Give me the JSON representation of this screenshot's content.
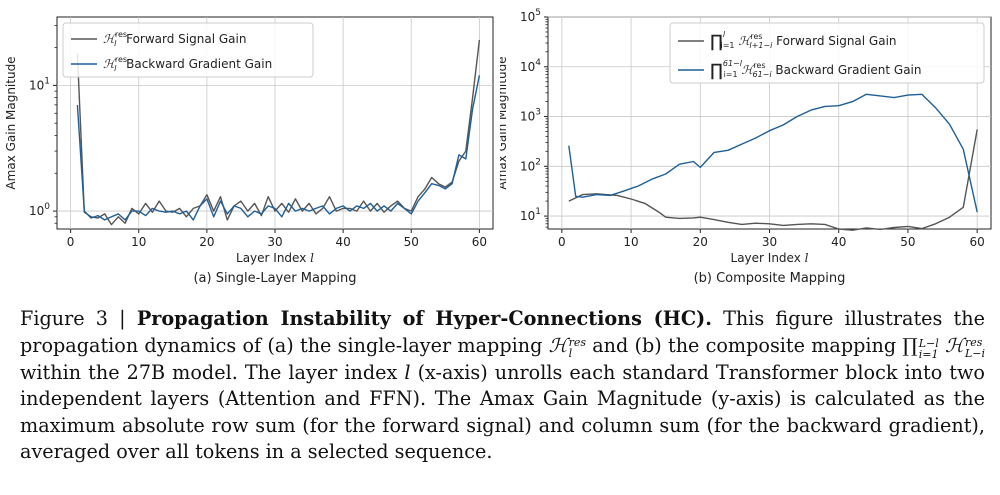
{
  "figure_caption": {
    "prefix": "Figure 3 | ",
    "title": "Propagation Instability of Hyper-Connections (HC).",
    "t1": " This figure illustrates the propagation dynamics of (a) the single-layer mapping ",
    "t2": " and (b) the composite mapping ",
    "t3": " within the 27B model. The layer index ",
    "t4": " (x-axis) unrolls each standard Transformer block into two independent layers (Attention and FFN). The Amax Gain Magnitude (y-axis) is calculated as the maximum absolute row sum (for the forward signal) and column sum (for the backward gradient), averaged over all tokens in a selected sequence.",
    "sym_H": "ℋ",
    "sym_res": "res",
    "sym_l": "l",
    "sym_prod": "∏",
    "sym_prod_upper": "L−l",
    "sym_prod_lower": "i=1",
    "sym_Lmi": "L−i"
  },
  "chart_data": [
    {
      "type": "line",
      "subtitle": "(a) Single-Layer Mapping",
      "xlabel": "Layer Index",
      "xlabel_symbol": "l",
      "ylabel": "Amax Gain Magnitude",
      "yscale": "log",
      "xlim": [
        -2,
        62
      ],
      "ylim": [
        0.72,
        35
      ],
      "xticks": [
        0,
        10,
        20,
        30,
        40,
        50,
        60
      ],
      "yticks": [
        {
          "value": 1,
          "base": "10",
          "exp": "0"
        },
        {
          "value": 10,
          "base": "10",
          "exp": "1"
        }
      ],
      "legend_position": "top-left",
      "series": [
        {
          "name": "Forward Signal Gain",
          "legend_symbol": "ℋ",
          "legend_sup": "res",
          "legend_sub": "l",
          "color": "#555555",
          "x": [
            1,
            2,
            3,
            4,
            5,
            6,
            7,
            8,
            9,
            10,
            11,
            12,
            13,
            14,
            15,
            16,
            17,
            18,
            19,
            20,
            21,
            22,
            23,
            24,
            25,
            26,
            27,
            28,
            29,
            30,
            31,
            32,
            33,
            34,
            35,
            36,
            37,
            38,
            39,
            40,
            41,
            42,
            43,
            44,
            45,
            46,
            47,
            48,
            49,
            50,
            51,
            52,
            53,
            54,
            55,
            56,
            57,
            58,
            59,
            60
          ],
          "values": [
            18,
            0.98,
            0.9,
            0.88,
            0.95,
            0.78,
            0.9,
            0.8,
            1.05,
            0.95,
            1.15,
            0.98,
            1.2,
            1.0,
            0.98,
            1.05,
            0.9,
            1.05,
            1.1,
            1.35,
            1.0,
            1.3,
            0.85,
            1.1,
            1.2,
            1.0,
            1.15,
            0.92,
            1.3,
            1.0,
            1.15,
            0.98,
            1.25,
            1.0,
            1.15,
            0.95,
            1.05,
            1.3,
            1.0,
            1.05,
            1.05,
            1.0,
            1.2,
            1.0,
            1.15,
            0.98,
            1.1,
            1.2,
            1.05,
            1.0,
            1.3,
            1.5,
            1.85,
            1.65,
            1.55,
            1.7,
            2.5,
            3.0,
            8.0,
            23.0
          ]
        },
        {
          "name": "Backward Gradient Gain",
          "legend_symbol": "ℋ",
          "legend_sup": "res",
          "legend_sub": "l",
          "color": "#1f5f96",
          "x": [
            1,
            2,
            3,
            4,
            5,
            6,
            7,
            8,
            9,
            10,
            11,
            12,
            13,
            14,
            15,
            16,
            17,
            18,
            19,
            20,
            21,
            22,
            23,
            24,
            25,
            26,
            27,
            28,
            29,
            30,
            31,
            32,
            33,
            34,
            35,
            36,
            37,
            38,
            39,
            40,
            41,
            42,
            43,
            44,
            45,
            46,
            47,
            48,
            49,
            50,
            51,
            52,
            53,
            54,
            55,
            56,
            57,
            58,
            59,
            60
          ],
          "values": [
            7,
            1.0,
            0.88,
            0.92,
            0.85,
            0.9,
            0.95,
            0.85,
            1.0,
            1.0,
            0.92,
            1.05,
            1.0,
            0.98,
            1.0,
            0.95,
            1.0,
            0.85,
            1.1,
            1.25,
            0.9,
            1.2,
            0.95,
            1.1,
            1.05,
            0.9,
            1.0,
            0.95,
            1.1,
            1.05,
            0.9,
            1.15,
            1.0,
            1.05,
            1.0,
            1.05,
            1.1,
            0.95,
            1.05,
            1.1,
            1.0,
            1.1,
            1.05,
            1.15,
            1.0,
            1.1,
            1.0,
            1.15,
            1.05,
            0.95,
            1.2,
            1.4,
            1.65,
            1.6,
            1.5,
            1.65,
            2.8,
            2.6,
            6.5,
            12.0
          ]
        }
      ]
    },
    {
      "type": "line",
      "subtitle": "(b) Composite Mapping",
      "xlabel": "Layer Index",
      "xlabel_symbol": "l",
      "ylabel": "Amax Gain Magnitude",
      "yscale": "log",
      "xlim": [
        -2,
        62
      ],
      "ylim": [
        5.5,
        100000
      ],
      "xticks": [
        0,
        10,
        20,
        30,
        40,
        50,
        60
      ],
      "yticks": [
        {
          "value": 10,
          "base": "10",
          "exp": "1"
        },
        {
          "value": 100,
          "base": "10",
          "exp": "2"
        },
        {
          "value": 1000,
          "base": "10",
          "exp": "3"
        },
        {
          "value": 10000,
          "base": "10",
          "exp": "4"
        },
        {
          "value": 100000,
          "base": "10",
          "exp": "5"
        }
      ],
      "legend_position": "top-right",
      "series": [
        {
          "name": "Forward Signal Gain",
          "legend_symbol": "ℋ",
          "legend_sup": "res",
          "legend_sub": "l+1−i",
          "legend_prod_upper": "l",
          "legend_prod_lower": "i=1",
          "color": "#555555",
          "x": [
            1,
            3,
            5,
            8,
            10,
            12,
            14,
            15,
            17,
            19,
            20,
            22,
            24,
            26,
            28,
            30,
            32,
            34,
            36,
            38,
            40,
            42,
            44,
            46,
            48,
            50,
            52,
            54,
            56,
            58,
            59,
            60
          ],
          "values": [
            20,
            27,
            28,
            26,
            22,
            18,
            12,
            9.5,
            9,
            9.2,
            9.5,
            8.5,
            7.5,
            6.8,
            7.2,
            7.0,
            6.5,
            6.8,
            7.0,
            6.8,
            5.5,
            5.2,
            5.8,
            5.4,
            5.9,
            6.2,
            5.6,
            7.0,
            9.5,
            15,
            90,
            550
          ]
        },
        {
          "name": "Backward Gradient Gain",
          "legend_symbol": "ℋ",
          "legend_sup": "res",
          "legend_sub": "61−i",
          "legend_prod_upper": "61−l",
          "legend_prod_lower": "i=1",
          "color": "#1f5f96",
          "x": [
            1,
            2,
            3,
            5,
            7,
            9,
            11,
            13,
            15,
            17,
            19,
            20,
            22,
            24,
            26,
            28,
            30,
            32,
            34,
            36,
            38,
            40,
            42,
            44,
            46,
            48,
            50,
            52,
            54,
            56,
            58,
            60
          ],
          "values": [
            260,
            25,
            24,
            27,
            26,
            32,
            40,
            55,
            70,
            110,
            125,
            95,
            190,
            210,
            280,
            370,
            520,
            680,
            1000,
            1350,
            1600,
            1650,
            2000,
            2800,
            2600,
            2400,
            2700,
            2800,
            1500,
            700,
            220,
            12
          ]
        }
      ]
    }
  ]
}
